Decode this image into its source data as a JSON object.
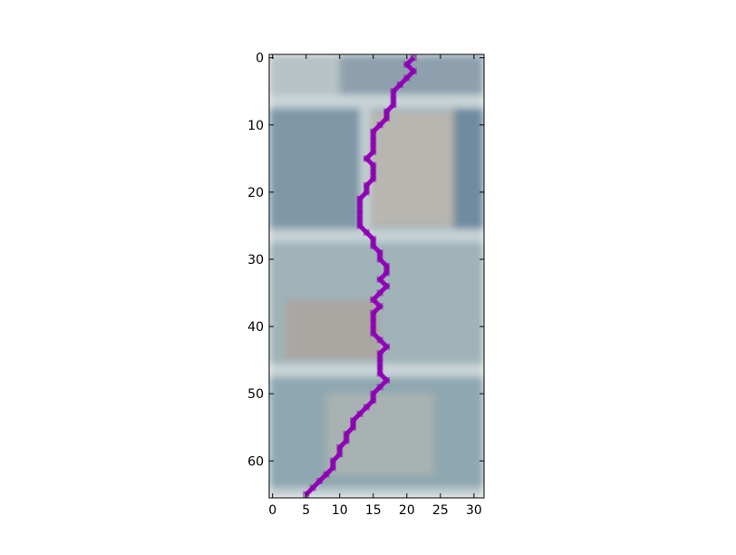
{
  "chart_data": {
    "type": "line",
    "title": "",
    "xlabel": "",
    "ylabel": "",
    "xlim": [
      -0.5,
      31.5
    ],
    "ylim": [
      65.5,
      -0.5
    ],
    "y_inverted": true,
    "grid": false,
    "legend": "none",
    "xticks": [
      0,
      5,
      10,
      15,
      20,
      25,
      30
    ],
    "yticks": [
      0,
      10,
      20,
      30,
      40,
      50,
      60
    ],
    "background": "image",
    "series": [
      {
        "color": "#a000c8",
        "points": [
          [
            21,
            0
          ],
          [
            20,
            1
          ],
          [
            21,
            2
          ],
          [
            20,
            3
          ],
          [
            19,
            4
          ],
          [
            18,
            5
          ],
          [
            18,
            6
          ],
          [
            18,
            7
          ],
          [
            17,
            8
          ],
          [
            17,
            9
          ],
          [
            16,
            10
          ],
          [
            15,
            11
          ],
          [
            15,
            12
          ],
          [
            15,
            13
          ],
          [
            15,
            14
          ],
          [
            14,
            15
          ],
          [
            15,
            16
          ],
          [
            15,
            17
          ],
          [
            15,
            18
          ],
          [
            14,
            19
          ],
          [
            14,
            20
          ],
          [
            13,
            21
          ],
          [
            13,
            22
          ],
          [
            13,
            23
          ],
          [
            13,
            24
          ],
          [
            13,
            25
          ],
          [
            14,
            26
          ],
          [
            15,
            27
          ],
          [
            15,
            28
          ],
          [
            16,
            29
          ],
          [
            16,
            30
          ],
          [
            17,
            31
          ],
          [
            17,
            32
          ],
          [
            16,
            33
          ],
          [
            17,
            34
          ],
          [
            16,
            35
          ],
          [
            15,
            36
          ],
          [
            16,
            37
          ],
          [
            15,
            38
          ],
          [
            15,
            39
          ],
          [
            15,
            40
          ],
          [
            15,
            41
          ],
          [
            16,
            42
          ],
          [
            17,
            43
          ],
          [
            16,
            44
          ],
          [
            16,
            45
          ],
          [
            16,
            46
          ],
          [
            16,
            47
          ],
          [
            17,
            48
          ],
          [
            16,
            49
          ],
          [
            15,
            50
          ],
          [
            15,
            51
          ],
          [
            14,
            52
          ],
          [
            13,
            53
          ],
          [
            12,
            54
          ],
          [
            12,
            55
          ],
          [
            11,
            56
          ],
          [
            11,
            57
          ],
          [
            10,
            58
          ],
          [
            10,
            59
          ],
          [
            9,
            60
          ],
          [
            9,
            61
          ],
          [
            8,
            62
          ],
          [
            7,
            63
          ],
          [
            6,
            64
          ],
          [
            5,
            65
          ]
        ]
      }
    ],
    "image_regions": [
      {
        "x0": -0.5,
        "x1": 31.5,
        "y0": -0.5,
        "y1": 65.5,
        "color": "#9aaeb4"
      },
      {
        "x0": -0.5,
        "x1": 10,
        "y0": -0.5,
        "y1": 5.5,
        "color": "#b6c2c6"
      },
      {
        "x0": 10,
        "x1": 31.5,
        "y0": -0.5,
        "y1": 5.5,
        "color": "#8ea0ae"
      },
      {
        "x0": -0.5,
        "x1": 31.5,
        "y0": 5.5,
        "y1": 7.5,
        "color": "#c9d4d8"
      },
      {
        "x0": -0.5,
        "x1": 13,
        "y0": 7.5,
        "y1": 25.5,
        "color": "#7f97a6"
      },
      {
        "x0": 13,
        "x1": 14.5,
        "y0": 7.5,
        "y1": 25.5,
        "color": "#c4d0d3"
      },
      {
        "x0": 14.5,
        "x1": 27,
        "y0": 8,
        "y1": 25,
        "color": "#b8b6b0"
      },
      {
        "x0": 27,
        "x1": 31.5,
        "y0": 7.5,
        "y1": 25.5,
        "color": "#6f8aa0"
      },
      {
        "x0": -0.5,
        "x1": 31.5,
        "y0": 25.5,
        "y1": 27.5,
        "color": "#c6d2d6"
      },
      {
        "x0": -0.5,
        "x1": 31.5,
        "y0": 27.5,
        "y1": 45.5,
        "color": "#9fb3b8"
      },
      {
        "x0": 2,
        "x1": 16,
        "y0": 36,
        "y1": 45,
        "color": "#aaa6a2"
      },
      {
        "x0": -0.5,
        "x1": 31.5,
        "y0": 45.5,
        "y1": 47.5,
        "color": "#c8d4d7"
      },
      {
        "x0": -0.5,
        "x1": 31.5,
        "y0": 47.5,
        "y1": 64,
        "color": "#8fa7b0"
      },
      {
        "x0": 8,
        "x1": 24,
        "y0": 50,
        "y1": 62,
        "color": "#a9b2b2"
      },
      {
        "x0": -0.5,
        "x1": 31.5,
        "y0": 64,
        "y1": 65.5,
        "color": "#c3cfd3"
      }
    ]
  }
}
